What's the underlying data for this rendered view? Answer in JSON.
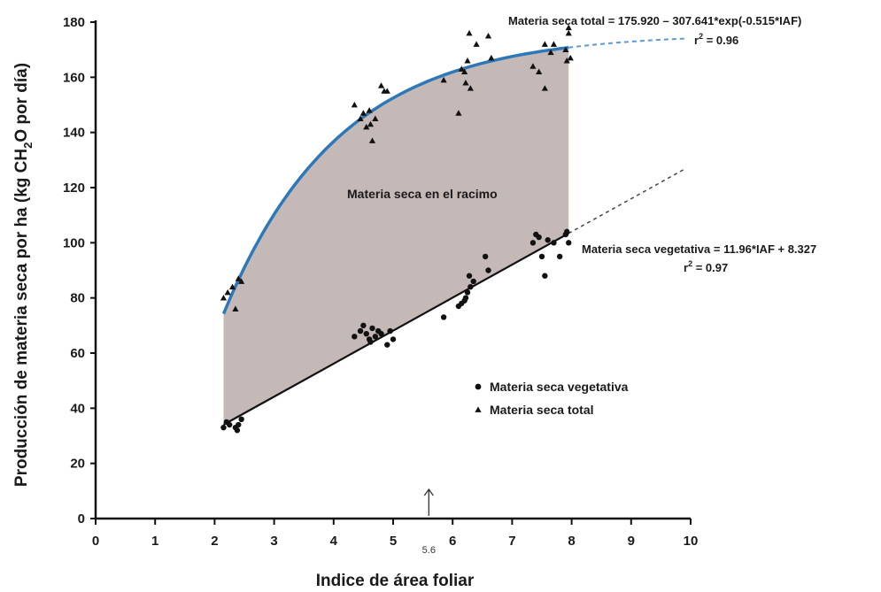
{
  "chart_data": {
    "type": "scatter",
    "xlabel": "Indice de área foliar",
    "ylabel_parts": [
      "Producción de materia seca por ha (kg CH",
      "2",
      "O por día)"
    ],
    "xlim": [
      0,
      10
    ],
    "ylim": [
      0,
      180
    ],
    "x_ticks": [
      "0",
      "1",
      "2",
      "3",
      "4",
      "5",
      "6",
      "7",
      "8",
      "9",
      "10"
    ],
    "y_ticks": [
      "0",
      "20",
      "40",
      "60",
      "80",
      "100",
      "120",
      "140",
      "160",
      "180"
    ],
    "grid": false,
    "legend_position": "lower-right",
    "series": [
      {
        "name": "Materia seca vegetativa",
        "marker": "circle",
        "color": "#111111",
        "points": [
          [
            2.15,
            33
          ],
          [
            2.2,
            35
          ],
          [
            2.25,
            34
          ],
          [
            2.35,
            33
          ],
          [
            2.38,
            32
          ],
          [
            2.4,
            34
          ],
          [
            2.45,
            36
          ],
          [
            4.35,
            66
          ],
          [
            4.45,
            68
          ],
          [
            4.5,
            70
          ],
          [
            4.55,
            67
          ],
          [
            4.6,
            65
          ],
          [
            4.62,
            64
          ],
          [
            4.65,
            69
          ],
          [
            4.7,
            66
          ],
          [
            4.75,
            68
          ],
          [
            4.8,
            67
          ],
          [
            4.9,
            63
          ],
          [
            4.95,
            68
          ],
          [
            5.0,
            65
          ],
          [
            5.85,
            73
          ],
          [
            6.1,
            77
          ],
          [
            6.15,
            78
          ],
          [
            6.2,
            79
          ],
          [
            6.22,
            80
          ],
          [
            6.25,
            82
          ],
          [
            6.28,
            88
          ],
          [
            6.3,
            84
          ],
          [
            6.35,
            86
          ],
          [
            6.55,
            95
          ],
          [
            6.6,
            90
          ],
          [
            7.35,
            100
          ],
          [
            7.4,
            103
          ],
          [
            7.45,
            102
          ],
          [
            7.5,
            95
          ],
          [
            7.55,
            88
          ],
          [
            7.6,
            101
          ],
          [
            7.7,
            100
          ],
          [
            7.8,
            95
          ],
          [
            7.9,
            103
          ],
          [
            7.92,
            104
          ],
          [
            7.95,
            100
          ]
        ]
      },
      {
        "name": "Materia seca total",
        "marker": "triangle",
        "color": "#111111",
        "points": [
          [
            2.15,
            80
          ],
          [
            2.22,
            82
          ],
          [
            2.3,
            84
          ],
          [
            2.35,
            76
          ],
          [
            2.4,
            87
          ],
          [
            2.45,
            86
          ],
          [
            4.35,
            150
          ],
          [
            4.45,
            145
          ],
          [
            4.5,
            147
          ],
          [
            4.55,
            142
          ],
          [
            4.6,
            148
          ],
          [
            4.62,
            143
          ],
          [
            4.65,
            137
          ],
          [
            4.7,
            145
          ],
          [
            4.8,
            157
          ],
          [
            4.85,
            155
          ],
          [
            4.9,
            155
          ],
          [
            5.85,
            159
          ],
          [
            6.1,
            147
          ],
          [
            6.15,
            163
          ],
          [
            6.2,
            162
          ],
          [
            6.22,
            158
          ],
          [
            6.25,
            166
          ],
          [
            6.28,
            176
          ],
          [
            6.3,
            156
          ],
          [
            6.4,
            172
          ],
          [
            6.6,
            175
          ],
          [
            6.65,
            167
          ],
          [
            7.35,
            164
          ],
          [
            7.45,
            162
          ],
          [
            7.55,
            156
          ],
          [
            7.55,
            172
          ],
          [
            7.65,
            169
          ],
          [
            7.7,
            172
          ],
          [
            7.9,
            170
          ],
          [
            7.92,
            166
          ],
          [
            7.95,
            176
          ],
          [
            7.95,
            178
          ],
          [
            7.98,
            167
          ]
        ]
      }
    ],
    "fits": [
      {
        "name": "Materia seca total",
        "model": "exponential",
        "equation": "Materia seca total = 175.920 – 307.641*exp(-0.515*IAF)",
        "r2_label": "r",
        "r2_sup": "2",
        "r2_value": " = 0.96",
        "a": 175.92,
        "b": 307.641,
        "k": 0.515,
        "x_range": [
          2.15,
          7.95
        ],
        "extrapolate_to": 9.9,
        "color": "#2e78b7",
        "extrapolation_color": "#5b9bd5"
      },
      {
        "name": "Materia seca vegetativa",
        "model": "linear",
        "equation": "Materia seca vegetativa = 11.96*IAF + 8.327",
        "r2_label": "r",
        "r2_sup": "2",
        "r2_value": " = 0.97",
        "slope": 11.96,
        "intercept": 8.327,
        "x_range": [
          2.15,
          7.95
        ],
        "extrapolate_to": 9.9,
        "color": "#111111",
        "extrapolation_color": "#444444"
      }
    ],
    "shaded_area": {
      "label": "Materia seca en el racimo",
      "x_range": [
        2.15,
        7.95
      ],
      "color": "#c4b9b7"
    },
    "marker_annotation": {
      "x": 5.6,
      "label": "5.6"
    }
  }
}
